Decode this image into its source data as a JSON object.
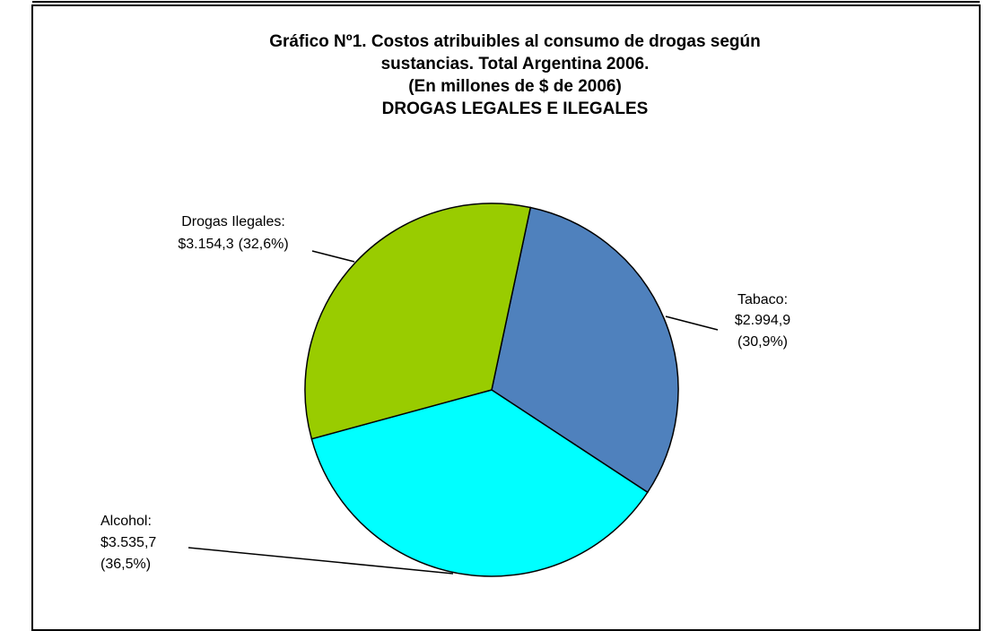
{
  "chart_data": {
    "type": "pie",
    "title": [
      "Gráfico Nº1. Costos atribuibles al consumo de drogas según",
      "sustancias. Total Argentina 2006.",
      "(En millones de $ de 2006)",
      "DROGAS LEGALES E ILEGALES"
    ],
    "categories": [
      "Tabaco:",
      "Alcohol:",
      "Drogas Ilegales:"
    ],
    "values": [
      2994.9,
      3535.7,
      3154.3
    ],
    "value_labels": [
      "$2.994,9",
      "$3.535,7",
      "$3.154,3"
    ],
    "percents": [
      30.9,
      36.5,
      32.6
    ],
    "percent_labels": [
      "(30,9%)",
      "(36,5%)",
      "(32,6%)"
    ],
    "colors": [
      "#4f81bd",
      "#00ffff",
      "#99cc00"
    ]
  }
}
